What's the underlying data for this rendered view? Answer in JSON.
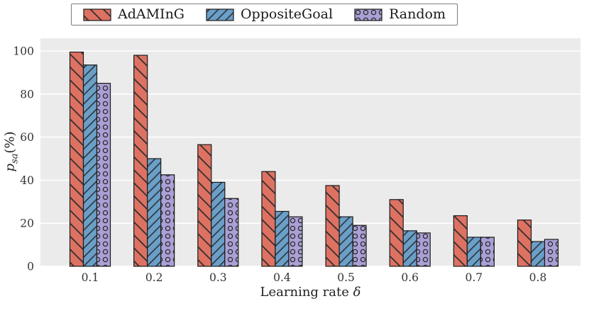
{
  "chart_data": {
    "type": "bar",
    "title": "",
    "categories": [
      "0.1",
      "0.2",
      "0.3",
      "0.4",
      "0.5",
      "0.6",
      "0.7",
      "0.8"
    ],
    "series": [
      {
        "name": "AdAMInG",
        "color": "#dd7263",
        "hatch": "\\",
        "values": [
          99.5,
          98,
          56.5,
          44,
          37.5,
          31,
          23.5,
          21.5
        ]
      },
      {
        "name": "OppositeGoal",
        "color": "#6a9fc8",
        "hatch": "/",
        "values": [
          93.5,
          50,
          39,
          25.5,
          23,
          16.5,
          13.5,
          11.5
        ]
      },
      {
        "name": "Random",
        "color": "#aaa0d6",
        "hatch": "o",
        "values": [
          85,
          42.5,
          31.5,
          23,
          19,
          15.5,
          13.5,
          12.5
        ]
      }
    ],
    "xlabel": "Learning rate δ",
    "xlabel_text": "Learning rate ",
    "xlabel_symbol": "δ",
    "ylabel": "p_sa(%)",
    "ylabel_p": "p",
    "ylabel_sub": "sa",
    "ylabel_rest": "(%)",
    "ylim": [
      0,
      100
    ],
    "yticks": [
      0,
      20,
      40,
      60,
      80,
      100
    ],
    "grid": "horizontal",
    "legend_position": "top",
    "plot_background": "#ebebeb",
    "grid_color": "#ffffff",
    "bar_edge_color": "#1a1a1a",
    "hatch_color": "#2b2b2b",
    "tick_color": "#333333"
  }
}
